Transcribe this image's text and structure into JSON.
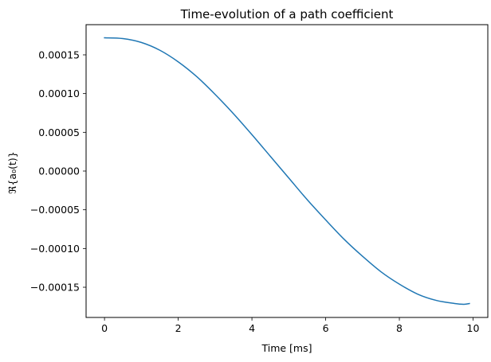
{
  "chart_data": {
    "type": "line",
    "title": "Time-evolution of a path coefficient",
    "xlabel": "Time [ms]",
    "ylabel": "ℜ{a₀(t)}",
    "xlim": [
      -0.5,
      10.4
    ],
    "ylim": [
      -0.000189,
      0.000189
    ],
    "x_ticks": [
      {
        "value": 0,
        "label": "0"
      },
      {
        "value": 2,
        "label": "2"
      },
      {
        "value": 4,
        "label": "4"
      },
      {
        "value": 6,
        "label": "6"
      },
      {
        "value": 8,
        "label": "8"
      },
      {
        "value": 10,
        "label": "10"
      }
    ],
    "y_ticks": [
      {
        "value": 0.00015,
        "label": "0.00015"
      },
      {
        "value": 0.0001,
        "label": "0.00010"
      },
      {
        "value": 5e-05,
        "label": "0.00005"
      },
      {
        "value": 0,
        "label": "0.00000"
      },
      {
        "value": -5e-05,
        "label": "−0.00005"
      },
      {
        "value": -0.0001,
        "label": "−0.00010"
      },
      {
        "value": -0.00015,
        "label": "−0.00015"
      }
    ],
    "grid": false,
    "line_color": "#1f77b4",
    "series": [
      {
        "x": [
          0,
          0.5,
          1.0,
          1.5,
          2.0,
          2.5,
          3.0,
          3.5,
          4.0,
          4.5,
          5.0,
          5.5,
          6.0,
          6.5,
          7.0,
          7.5,
          8.0,
          8.5,
          9.0,
          9.5,
          9.75,
          9.9
        ],
        "values": [
          0.000172,
          0.000171,
          0.000166,
          0.000156,
          0.000141,
          0.000122,
          9.9e-05,
          7.4e-05,
          4.7e-05,
          1.9e-05,
          -9e-06,
          -3.7e-05,
          -6.3e-05,
          -8.8e-05,
          -0.00011,
          -0.00013,
          -0.000146,
          -0.000159,
          -0.000167,
          -0.000171,
          -0.000172,
          -0.000171
        ]
      }
    ]
  }
}
